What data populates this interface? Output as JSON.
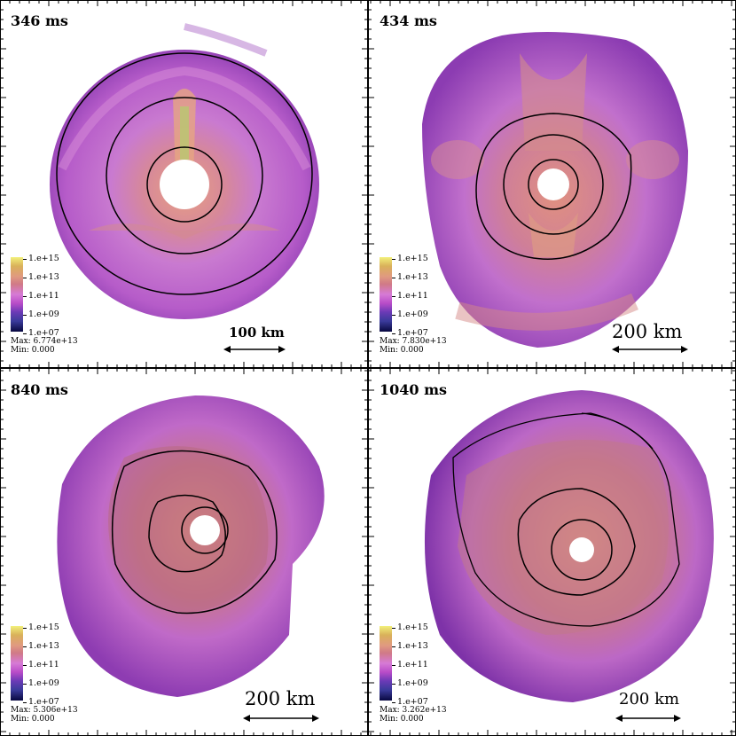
{
  "colorbar": {
    "ticks": [
      "1.e+15",
      "1.e+13",
      "1.e+11",
      "1.e+09",
      "1.e+07"
    ]
  },
  "panels": [
    {
      "time": "346 ms",
      "max": "Max: 6.774e+13",
      "min": "Min: 0.000",
      "scale": "100 km"
    },
    {
      "time": "434 ms",
      "max": "Max: 7.830e+13",
      "min": "Min: 0.000",
      "scale": "200 km"
    },
    {
      "time": "840 ms",
      "max": "Max: 5.306e+13",
      "min": "Min: 0.000",
      "scale": "200 km"
    },
    {
      "time": "1040 ms",
      "max": "Max: 3.262e+13",
      "min": "Min: 0.000",
      "scale": "200 km"
    }
  ]
}
